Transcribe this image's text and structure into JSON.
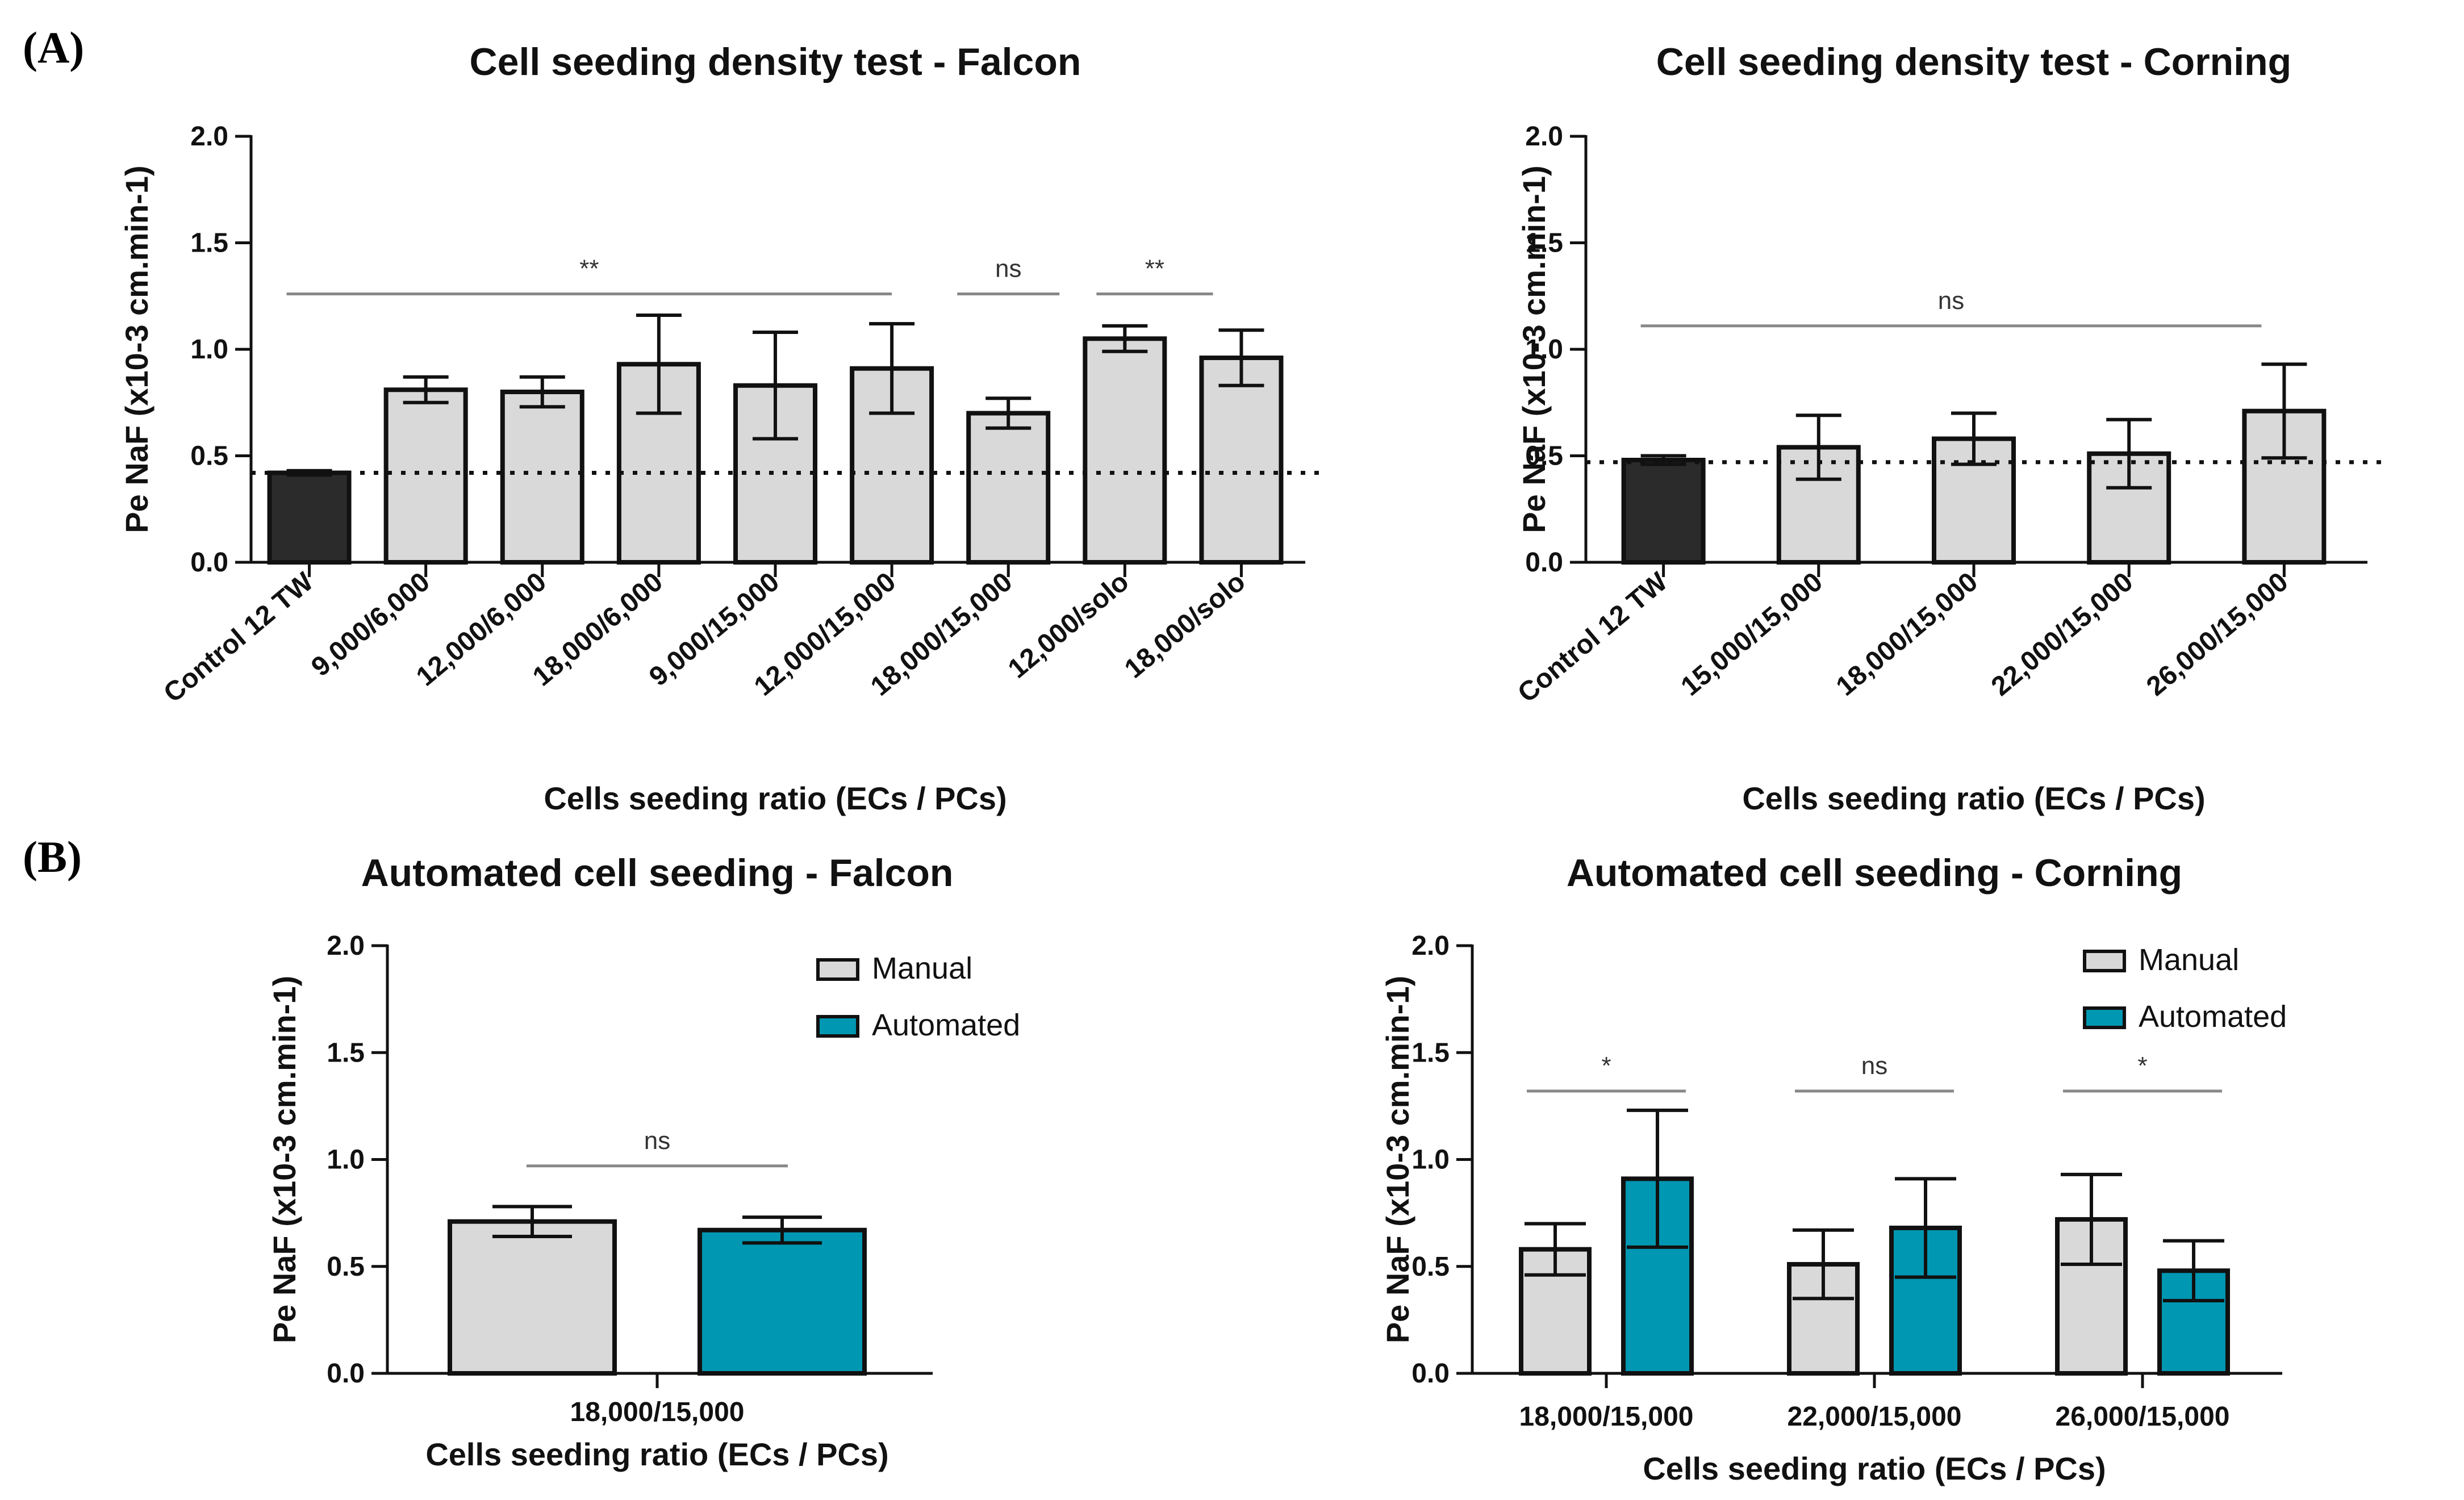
{
  "panels": {
    "a": "(A)",
    "b": "(B)"
  },
  "chart_data": [
    {
      "type": "bar",
      "title": "Cell seeding density test - Falcon",
      "xlabel": "Cells seeding ratio (ECs / PCs)",
      "ylabel": "Pe NaF (x10-3 cm.min-1)",
      "ylim": [
        0,
        2
      ],
      "yticks": [
        "0.0",
        "0.5",
        "1.0",
        "1.5",
        "2.0"
      ],
      "categories": [
        "Control 12 TW",
        "9,000/6,000",
        "12,000/6,000",
        "18,000/6,000",
        "9,000/15,000",
        "12,000/15,000",
        "18,000/15,000",
        "12,000/solo",
        "18,000/solo"
      ],
      "series": [
        {
          "values": [
            0.42,
            0.81,
            0.8,
            0.93,
            0.83,
            0.91,
            0.7,
            1.05,
            0.96
          ],
          "error": [
            0.01,
            0.06,
            0.07,
            0.23,
            0.25,
            0.21,
            0.07,
            0.06,
            0.13
          ],
          "colors": [
            "#2b2b2b",
            "#d9d9d9",
            "#d9d9d9",
            "#d9d9d9",
            "#d9d9d9",
            "#d9d9d9",
            "#d9d9d9",
            "#d9d9d9",
            "#d9d9d9"
          ]
        }
      ],
      "baseline": 0.42,
      "significance": [
        {
          "from": 0,
          "to": 5,
          "label": "**",
          "y": 1.26
        },
        {
          "from": 6,
          "to": 6,
          "label": "ns",
          "y": 1.26
        },
        {
          "from": 7,
          "to": 8,
          "label": "**",
          "y": 1.26
        }
      ]
    },
    {
      "type": "bar",
      "title": "Cell seeding density test - Corning",
      "xlabel": "Cells seeding ratio (ECs / PCs)",
      "ylabel": "Pe NaF (x10-3 cm.min-1)",
      "ylim": [
        0,
        2
      ],
      "yticks": [
        "0.0",
        "0.5",
        "1.0",
        "1.5",
        "2.0"
      ],
      "categories": [
        "Control 12 TW",
        "15,000/15,000",
        "18,000/15,000",
        "22,000/15,000",
        "26,000/15,000"
      ],
      "series": [
        {
          "values": [
            0.48,
            0.54,
            0.58,
            0.51,
            0.71
          ],
          "error": [
            0.02,
            0.15,
            0.12,
            0.16,
            0.22
          ],
          "colors": [
            "#2b2b2b",
            "#d9d9d9",
            "#d9d9d9",
            "#d9d9d9",
            "#d9d9d9"
          ]
        }
      ],
      "baseline": 0.47,
      "significance": [
        {
          "from": 0,
          "to": 4,
          "label": "ns",
          "y": 1.11
        }
      ]
    },
    {
      "type": "bar",
      "title": "Automated cell seeding -  Falcon",
      "xlabel": "Cells seeding ratio (ECs / PCs)",
      "ylabel": "Pe NaF (x10-3 cm.min-1)",
      "ylim": [
        0,
        2
      ],
      "yticks": [
        "0.0",
        "0.5",
        "1.0",
        "1.5",
        "2.0"
      ],
      "categories": [
        "18,000/15,000"
      ],
      "series": [
        {
          "name": "Manual",
          "color": "#d9d9d9",
          "values": [
            0.71
          ],
          "error": [
            0.07
          ]
        },
        {
          "name": "Automated",
          "color": "#0097b2",
          "values": [
            0.67
          ],
          "error": [
            0.06
          ]
        }
      ],
      "legend": "top-right",
      "significance": [
        {
          "group": 0,
          "label": "ns",
          "y": 0.97
        }
      ]
    },
    {
      "type": "bar",
      "title": "Automated cell seeding -  Corning",
      "xlabel": "Cells seeding ratio (ECs / PCs)",
      "ylabel": "Pe NaF (x10-3 cm.min-1)",
      "ylim": [
        0,
        2
      ],
      "yticks": [
        "0.0",
        "0.5",
        "1.0",
        "1.5",
        "2.0"
      ],
      "categories": [
        "18,000/15,000",
        "22,000/15,000",
        "26,000/15,000"
      ],
      "series": [
        {
          "name": "Manual",
          "color": "#d9d9d9",
          "values": [
            0.58,
            0.51,
            0.72
          ],
          "error": [
            0.12,
            0.16,
            0.21
          ]
        },
        {
          "name": "Automated",
          "color": "#0097b2",
          "values": [
            0.91,
            0.68,
            0.48
          ],
          "error": [
            0.32,
            0.23,
            0.14
          ]
        }
      ],
      "legend": "top-right",
      "significance": [
        {
          "group": 0,
          "label": "*",
          "y": 1.32
        },
        {
          "group": 1,
          "label": "ns",
          "y": 1.32
        },
        {
          "group": 2,
          "label": "*",
          "y": 1.32
        }
      ]
    }
  ]
}
